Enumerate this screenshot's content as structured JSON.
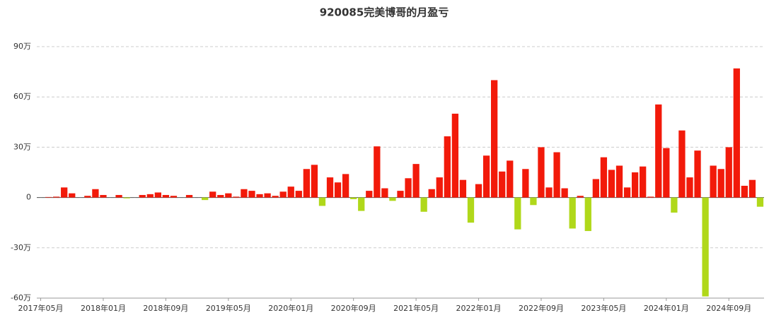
{
  "chart_data": {
    "type": "bar",
    "title": "920085完美博哥的月盈亏",
    "categories": [
      "2017年05月",
      null,
      null,
      null,
      null,
      null,
      null,
      null,
      "2018年01月",
      null,
      null,
      null,
      null,
      null,
      null,
      null,
      "2018年09月",
      null,
      null,
      null,
      null,
      null,
      null,
      null,
      "2019年05月",
      null,
      null,
      null,
      null,
      null,
      null,
      null,
      "2020年01月",
      null,
      null,
      null,
      null,
      null,
      null,
      null,
      "2020年09月",
      null,
      null,
      null,
      null,
      null,
      null,
      null,
      "2021年05月",
      null,
      null,
      null,
      null,
      null,
      null,
      null,
      "2022年01月",
      null,
      null,
      null,
      null,
      null,
      null,
      null,
      "2022年09月",
      null,
      null,
      null,
      null,
      null,
      null,
      null,
      "2023年05月",
      null,
      null,
      null,
      null,
      null,
      null,
      null,
      "2024年01月",
      null,
      null,
      null,
      null,
      null,
      null,
      null,
      "2024年09月",
      null,
      null,
      null,
      null
    ],
    "values": [
      0,
      0.3,
      0.5,
      6,
      2.5,
      0,
      1,
      5,
      1.5,
      0,
      1.5,
      -0.5,
      0,
      1.5,
      2,
      3,
      1.5,
      1,
      0,
      1.5,
      0,
      -1.5,
      3.5,
      1.5,
      2.5,
      0.5,
      5,
      4,
      2,
      2.5,
      1,
      3.5,
      6.5,
      4,
      17,
      19.5,
      -5,
      12,
      9,
      14,
      -1,
      -8,
      4,
      30.5,
      5.5,
      -2,
      4,
      11.5,
      20,
      -8.5,
      5,
      12,
      36.5,
      50,
      10.5,
      -15,
      8,
      25,
      70,
      15.5,
      22,
      -19,
      17,
      -4.5,
      30,
      6,
      27,
      5.5,
      -18.5,
      1,
      -20,
      11,
      24,
      16.5,
      19,
      6,
      15,
      18.5,
      0.5,
      55.5,
      29.5,
      -9,
      40,
      12,
      28,
      -59,
      19,
      17,
      30,
      77,
      7,
      10.5,
      -5.5
    ],
    "positive_color": "#f21a0a",
    "negative_color": "#b0d81a",
    "ylim": [
      -60,
      90
    ],
    "yticks": [
      {
        "value": -60,
        "label": "-60万"
      },
      {
        "value": -30,
        "label": "-30万"
      },
      0,
      {
        "value": 30,
        "label": "30万"
      },
      {
        "value": 60,
        "label": "60万"
      },
      {
        "value": 90,
        "label": "90万"
      }
    ],
    "grid": true
  }
}
